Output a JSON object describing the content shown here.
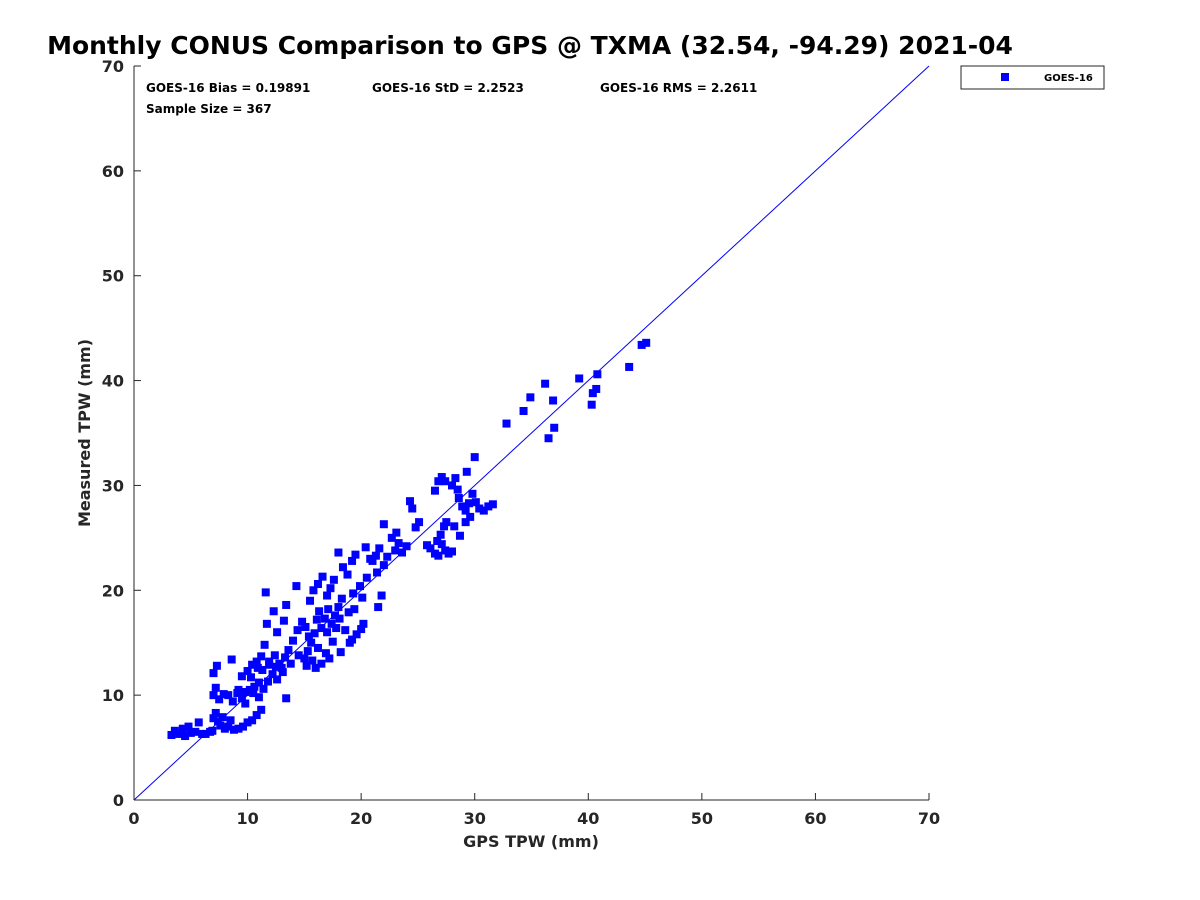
{
  "chart_data": {
    "type": "scatter",
    "title": "Monthly CONUS Comparison to GPS @ TXMA (32.54, -94.29) 2021-04",
    "xlabel": "GPS TPW (mm)",
    "ylabel": "Measured TPW (mm)",
    "xlim": [
      0,
      70
    ],
    "ylim": [
      0,
      70
    ],
    "xticks": [
      "0",
      "10",
      "20",
      "30",
      "40",
      "50",
      "60",
      "70"
    ],
    "yticks": [
      "0",
      "10",
      "20",
      "30",
      "40",
      "50",
      "60",
      "70"
    ],
    "grid": false,
    "legend_position": "outside-top-right",
    "reference_line": {
      "type": "one-to-one",
      "color": "#0000ff"
    },
    "stats": {
      "bias": "GOES-16 Bias = 0.19891",
      "std": "GOES-16 StD = 2.2523",
      "rms": "GOES-16 RMS = 2.2611",
      "sample_size": "Sample Size = 367"
    },
    "series": [
      {
        "name": "GOES-16",
        "color": "#0000ff",
        "marker": "square",
        "points": [
          [
            3.3,
            6.2
          ],
          [
            3.6,
            6.6
          ],
          [
            4.0,
            6.3
          ],
          [
            4.3,
            6.8
          ],
          [
            4.5,
            6.1
          ],
          [
            4.8,
            7.0
          ],
          [
            5.0,
            6.4
          ],
          [
            5.4,
            6.5
          ],
          [
            5.7,
            7.4
          ],
          [
            6.0,
            6.3
          ],
          [
            6.3,
            6.3
          ],
          [
            6.7,
            6.5
          ],
          [
            6.9,
            6.6
          ],
          [
            7.0,
            7.8
          ],
          [
            7.2,
            8.3
          ],
          [
            7.4,
            7.5
          ],
          [
            7.6,
            7.1
          ],
          [
            7.8,
            7.9
          ],
          [
            8.0,
            6.8
          ],
          [
            8.3,
            7.0
          ],
          [
            8.5,
            7.6
          ],
          [
            8.8,
            6.7
          ],
          [
            9.2,
            6.8
          ],
          [
            9.6,
            7.0
          ],
          [
            10.0,
            7.4
          ],
          [
            10.4,
            7.6
          ],
          [
            10.8,
            8.1
          ],
          [
            11.2,
            8.6
          ],
          [
            7.0,
            10.0
          ],
          [
            7.2,
            10.7
          ],
          [
            7.5,
            9.6
          ],
          [
            7.9,
            10.1
          ],
          [
            8.3,
            10.0
          ],
          [
            8.7,
            9.4
          ],
          [
            9.1,
            10.2
          ],
          [
            9.5,
            9.7
          ],
          [
            9.8,
            10.3
          ],
          [
            10.2,
            10.5
          ],
          [
            10.6,
            10.8
          ],
          [
            11.0,
            11.2
          ],
          [
            7.0,
            12.1
          ],
          [
            7.3,
            12.8
          ],
          [
            8.6,
            13.4
          ],
          [
            9.5,
            11.8
          ],
          [
            10.0,
            12.3
          ],
          [
            10.4,
            12.9
          ],
          [
            10.8,
            13.2
          ],
          [
            11.2,
            13.7
          ],
          [
            11.5,
            14.8
          ],
          [
            11.7,
            16.8
          ],
          [
            11.6,
            19.8
          ],
          [
            12.3,
            18.0
          ],
          [
            12.6,
            16.0
          ],
          [
            13.2,
            17.1
          ],
          [
            13.4,
            18.6
          ],
          [
            14.3,
            20.4
          ],
          [
            10.5,
            10.2
          ],
          [
            11.0,
            9.8
          ],
          [
            11.4,
            10.6
          ],
          [
            11.8,
            11.3
          ],
          [
            12.2,
            12.0
          ],
          [
            12.6,
            11.5
          ],
          [
            13.0,
            12.6
          ],
          [
            13.4,
            9.7
          ],
          [
            11.9,
            13.2
          ],
          [
            12.4,
            13.8
          ],
          [
            12.8,
            13.0
          ],
          [
            13.3,
            13.6
          ],
          [
            13.6,
            14.3
          ],
          [
            14.0,
            15.2
          ],
          [
            14.4,
            16.2
          ],
          [
            14.8,
            17.0
          ],
          [
            15.0,
            13.5
          ],
          [
            15.3,
            14.2
          ],
          [
            15.6,
            15.0
          ],
          [
            15.9,
            15.9
          ],
          [
            16.2,
            14.5
          ],
          [
            16.5,
            16.4
          ],
          [
            16.8,
            17.3
          ],
          [
            17.1,
            18.2
          ],
          [
            17.4,
            16.8
          ],
          [
            17.7,
            17.6
          ],
          [
            18.0,
            18.4
          ],
          [
            18.3,
            19.2
          ],
          [
            18.6,
            16.2
          ],
          [
            18.9,
            17.9
          ],
          [
            19.2,
            15.3
          ],
          [
            15.5,
            19.0
          ],
          [
            15.8,
            20.0
          ],
          [
            16.2,
            20.6
          ],
          [
            16.6,
            21.3
          ],
          [
            17.0,
            19.5
          ],
          [
            17.3,
            20.2
          ],
          [
            17.6,
            21.0
          ],
          [
            18.0,
            23.6
          ],
          [
            18.4,
            22.2
          ],
          [
            18.8,
            21.5
          ],
          [
            19.2,
            22.8
          ],
          [
            19.5,
            23.4
          ],
          [
            19.9,
            20.4
          ],
          [
            20.2,
            16.8
          ],
          [
            20.4,
            24.1
          ],
          [
            20.8,
            23.0
          ],
          [
            15.2,
            12.8
          ],
          [
            15.7,
            13.3
          ],
          [
            16.0,
            12.6
          ],
          [
            16.5,
            13.0
          ],
          [
            16.9,
            14.0
          ],
          [
            17.2,
            13.5
          ],
          [
            17.5,
            15.1
          ],
          [
            18.2,
            14.1
          ],
          [
            19.0,
            15.0
          ],
          [
            19.6,
            15.8
          ],
          [
            20.0,
            16.3
          ],
          [
            15.1,
            16.5
          ],
          [
            16.3,
            18.0
          ],
          [
            17.8,
            16.4
          ],
          [
            19.4,
            18.2
          ],
          [
            20.1,
            19.3
          ],
          [
            21.0,
            22.8
          ],
          [
            21.3,
            23.3
          ],
          [
            21.6,
            24.0
          ],
          [
            22.0,
            22.4
          ],
          [
            22.3,
            23.2
          ],
          [
            22.7,
            25.0
          ],
          [
            23.0,
            23.8
          ],
          [
            23.3,
            24.5
          ],
          [
            23.6,
            23.6
          ],
          [
            21.5,
            18.4
          ],
          [
            21.8,
            19.5
          ],
          [
            22.0,
            26.3
          ],
          [
            23.1,
            25.5
          ],
          [
            24.0,
            24.2
          ],
          [
            24.3,
            28.5
          ],
          [
            24.5,
            27.8
          ],
          [
            24.8,
            26.0
          ],
          [
            25.1,
            26.5
          ],
          [
            25.8,
            24.3
          ],
          [
            26.1,
            24.0
          ],
          [
            26.5,
            23.5
          ],
          [
            26.8,
            23.3
          ],
          [
            27.1,
            24.4
          ],
          [
            27.4,
            23.8
          ],
          [
            27.7,
            23.5
          ],
          [
            28.0,
            23.7
          ],
          [
            26.7,
            24.7
          ],
          [
            27.0,
            25.3
          ],
          [
            27.3,
            26.1
          ],
          [
            27.5,
            26.5
          ],
          [
            26.5,
            29.5
          ],
          [
            26.8,
            30.4
          ],
          [
            27.1,
            30.8
          ],
          [
            27.4,
            30.4
          ],
          [
            28.0,
            30.0
          ],
          [
            28.3,
            30.7
          ],
          [
            28.6,
            28.8
          ],
          [
            28.9,
            28.0
          ],
          [
            29.2,
            27.6
          ],
          [
            29.5,
            28.3
          ],
          [
            29.8,
            29.2
          ],
          [
            30.1,
            28.4
          ],
          [
            30.4,
            27.8
          ],
          [
            30.8,
            27.6
          ],
          [
            31.2,
            28.0
          ],
          [
            31.6,
            28.2
          ],
          [
            28.2,
            26.1
          ],
          [
            28.7,
            25.2
          ],
          [
            29.2,
            26.5
          ],
          [
            29.6,
            27.0
          ],
          [
            30.0,
            32.7
          ],
          [
            29.3,
            31.3
          ],
          [
            28.5,
            29.6
          ],
          [
            32.8,
            35.9
          ],
          [
            34.3,
            37.1
          ],
          [
            34.9,
            38.4
          ],
          [
            36.2,
            39.7
          ],
          [
            36.5,
            34.5
          ],
          [
            36.9,
            38.1
          ],
          [
            37.0,
            35.5
          ],
          [
            39.2,
            40.2
          ],
          [
            40.3,
            37.7
          ],
          [
            40.4,
            38.8
          ],
          [
            40.7,
            39.2
          ],
          [
            40.8,
            40.6
          ],
          [
            43.6,
            41.3
          ],
          [
            44.7,
            43.4
          ],
          [
            45.1,
            43.6
          ],
          [
            9.2,
            10.5
          ],
          [
            9.8,
            9.2
          ],
          [
            10.3,
            11.7
          ],
          [
            10.9,
            12.6
          ],
          [
            11.3,
            12.4
          ],
          [
            11.9,
            12.9
          ],
          [
            12.5,
            12.7
          ],
          [
            13.1,
            12.2
          ],
          [
            13.8,
            13.0
          ],
          [
            14.5,
            13.8
          ],
          [
            15.4,
            15.6
          ],
          [
            16.1,
            17.2
          ],
          [
            17.0,
            16.0
          ],
          [
            18.1,
            17.3
          ],
          [
            19.3,
            19.7
          ],
          [
            20.5,
            21.2
          ],
          [
            21.4,
            21.7
          ]
        ]
      }
    ]
  }
}
